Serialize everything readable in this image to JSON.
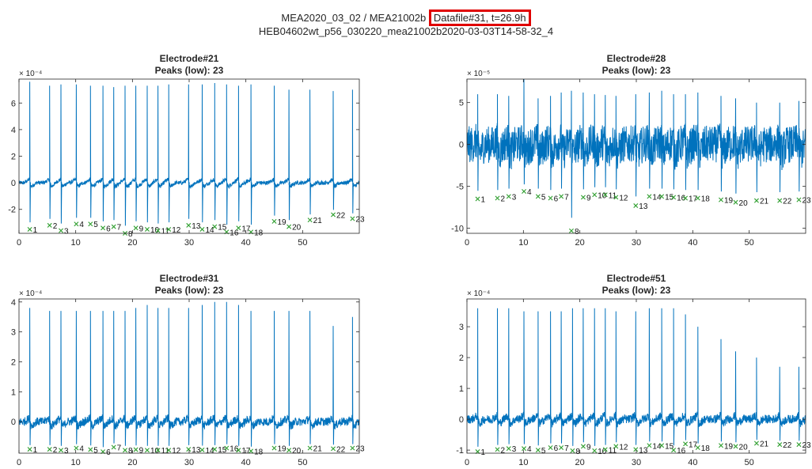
{
  "header": {
    "line1_prefix": "MEA2020_03_02 / MEA21002b",
    "line1_highlight": "Datafile#31, t=26.9h",
    "line2": "HEB04602wt_p56_030220_mea21002b2020-03-03T14-58-32_4",
    "highlight_color": "#e00000"
  },
  "chart_data": [
    {
      "type": "line",
      "title": "Electrode#21",
      "subtitle": "Peaks (low):  23",
      "y_multiplier": "× 10⁻⁴",
      "xlim": [
        0,
        60
      ],
      "ylim": [
        -3.8,
        7.8
      ],
      "xticks": [
        0,
        10,
        20,
        30,
        40,
        50
      ],
      "yticks": [
        -2,
        0,
        2,
        4,
        6
      ],
      "line_color": "#0072bd",
      "marker_color": "#2e9e2e",
      "baseline": 0,
      "noise": 0.15,
      "dip": -0.7,
      "peaks": [
        {
          "n": 1,
          "x": 1.9,
          "spike": 7.6,
          "low": -3.5
        },
        {
          "n": 2,
          "x": 5.4,
          "spike": 7.3,
          "low": -3.2
        },
        {
          "n": 3,
          "x": 7.4,
          "spike": 7.4,
          "low": -3.6
        },
        {
          "n": 4,
          "x": 10.1,
          "spike": 7.4,
          "low": -3.1
        },
        {
          "n": 5,
          "x": 12.6,
          "spike": 7.3,
          "low": -3.1
        },
        {
          "n": 6,
          "x": 14.8,
          "spike": 7.3,
          "low": -3.4
        },
        {
          "n": 7,
          "x": 16.7,
          "spike": 7.2,
          "low": -3.3
        },
        {
          "n": 8,
          "x": 18.7,
          "spike": 7.3,
          "low": -3.8
        },
        {
          "n": 9,
          "x": 20.6,
          "spike": 7.3,
          "low": -3.4
        },
        {
          "n": 10,
          "x": 22.6,
          "spike": 7.3,
          "low": -3.5
        },
        {
          "n": 11,
          "x": 24.5,
          "spike": 7.3,
          "low": -3.6
        },
        {
          "n": 12,
          "x": 26.4,
          "spike": 7.4,
          "low": -3.5
        },
        {
          "n": 13,
          "x": 29.9,
          "spike": 7.4,
          "low": -3.2
        },
        {
          "n": 14,
          "x": 32.3,
          "spike": 7.4,
          "low": -3.5
        },
        {
          "n": 15,
          "x": 34.5,
          "spike": 7.5,
          "low": -3.3
        },
        {
          "n": 16,
          "x": 36.6,
          "spike": 7.4,
          "low": -3.7
        },
        {
          "n": 17,
          "x": 38.7,
          "spike": 7.3,
          "low": -3.4
        },
        {
          "n": 18,
          "x": 40.9,
          "spike": 7.4,
          "low": -3.7
        },
        {
          "n": 19,
          "x": 45.0,
          "spike": 7.3,
          "low": -2.9
        },
        {
          "n": 20,
          "x": 47.6,
          "spike": 7.0,
          "low": -3.3
        },
        {
          "n": 21,
          "x": 51.3,
          "spike": 7.0,
          "low": -2.8
        },
        {
          "n": 22,
          "x": 55.4,
          "spike": 6.9,
          "low": -2.4
        },
        {
          "n": 23,
          "x": 58.8,
          "spike": 7.0,
          "low": -2.7
        }
      ]
    },
    {
      "type": "line",
      "title": "Electrode#28",
      "subtitle": "Peaks (low):  23",
      "y_multiplier": "× 10⁻⁵",
      "xlim": [
        0,
        60
      ],
      "ylim": [
        -10.6,
        7.8
      ],
      "xticks": [
        0,
        10,
        20,
        30,
        40,
        50
      ],
      "yticks": [
        -10,
        -5,
        0,
        5
      ],
      "line_color": "#0072bd",
      "marker_color": "#2e9e2e",
      "baseline": 0,
      "noise": 2.2,
      "dip": -2.5,
      "peaks": [
        {
          "n": 1,
          "x": 1.9,
          "spike": 6.0,
          "low": -6.5
        },
        {
          "n": 2,
          "x": 5.4,
          "spike": 6.0,
          "low": -6.4
        },
        {
          "n": 3,
          "x": 7.4,
          "spike": 5.8,
          "low": -6.2
        },
        {
          "n": 4,
          "x": 10.1,
          "spike": 7.8,
          "low": -5.6
        },
        {
          "n": 5,
          "x": 12.6,
          "spike": 5.5,
          "low": -6.2
        },
        {
          "n": 6,
          "x": 14.8,
          "spike": 5.8,
          "low": -6.4
        },
        {
          "n": 7,
          "x": 16.7,
          "spike": 6.2,
          "low": -6.2
        },
        {
          "n": 8,
          "x": 18.5,
          "spike": 6.4,
          "low": -10.3
        },
        {
          "n": 9,
          "x": 20.6,
          "spike": 6.2,
          "low": -6.3
        },
        {
          "n": 10,
          "x": 22.6,
          "spike": 6.0,
          "low": -6.0
        },
        {
          "n": 11,
          "x": 24.5,
          "spike": 5.9,
          "low": -6.0
        },
        {
          "n": 12,
          "x": 26.4,
          "spike": 5.8,
          "low": -6.3
        },
        {
          "n": 13,
          "x": 29.9,
          "spike": 6.0,
          "low": -7.3
        },
        {
          "n": 14,
          "x": 32.3,
          "spike": 6.2,
          "low": -6.2
        },
        {
          "n": 15,
          "x": 34.5,
          "spike": 6.4,
          "low": -6.2
        },
        {
          "n": 16,
          "x": 36.6,
          "spike": 6.0,
          "low": -6.3
        },
        {
          "n": 17,
          "x": 38.7,
          "spike": 6.0,
          "low": -6.4
        },
        {
          "n": 18,
          "x": 40.9,
          "spike": 6.2,
          "low": -6.4
        },
        {
          "n": 19,
          "x": 45.0,
          "spike": 5.8,
          "low": -6.6
        },
        {
          "n": 20,
          "x": 47.6,
          "spike": 5.5,
          "low": -6.9
        },
        {
          "n": 21,
          "x": 51.3,
          "spike": 5.0,
          "low": -6.7
        },
        {
          "n": 22,
          "x": 55.4,
          "spike": 5.0,
          "low": -6.7
        },
        {
          "n": 23,
          "x": 58.8,
          "spike": 5.2,
          "low": -6.6
        }
      ]
    },
    {
      "type": "line",
      "title": "Electrode#31",
      "subtitle": "Peaks (low):  23",
      "y_multiplier": "× 10⁻⁴",
      "xlim": [
        0,
        60
      ],
      "ylim": [
        -1.05,
        4.1
      ],
      "xticks": [
        0,
        10,
        20,
        30,
        40,
        50
      ],
      "yticks": [
        0,
        1,
        2,
        3,
        4
      ],
      "line_color": "#0072bd",
      "marker_color": "#2e9e2e",
      "baseline": 0,
      "noise": 0.14,
      "dip": -0.35,
      "peaks": [
        {
          "n": 1,
          "x": 1.9,
          "spike": 3.8,
          "low": -0.92
        },
        {
          "n": 2,
          "x": 5.4,
          "spike": 3.7,
          "low": -0.92
        },
        {
          "n": 3,
          "x": 7.4,
          "spike": 3.7,
          "low": -0.95
        },
        {
          "n": 4,
          "x": 10.1,
          "spike": 3.7,
          "low": -0.88
        },
        {
          "n": 5,
          "x": 12.6,
          "spike": 3.7,
          "low": -0.93
        },
        {
          "n": 6,
          "x": 14.8,
          "spike": 3.7,
          "low": -1.0
        },
        {
          "n": 7,
          "x": 16.7,
          "spike": 3.7,
          "low": -0.85
        },
        {
          "n": 8,
          "x": 18.7,
          "spike": 3.7,
          "low": -0.95
        },
        {
          "n": 9,
          "x": 20.6,
          "spike": 3.8,
          "low": -0.93
        },
        {
          "n": 10,
          "x": 22.6,
          "spike": 3.9,
          "low": -0.95
        },
        {
          "n": 11,
          "x": 24.5,
          "spike": 3.8,
          "low": -0.95
        },
        {
          "n": 12,
          "x": 26.4,
          "spike": 3.8,
          "low": -0.95
        },
        {
          "n": 13,
          "x": 29.9,
          "spike": 3.8,
          "low": -0.92
        },
        {
          "n": 14,
          "x": 32.3,
          "spike": 3.9,
          "low": -0.94
        },
        {
          "n": 15,
          "x": 34.5,
          "spike": 4.0,
          "low": -0.92
        },
        {
          "n": 16,
          "x": 36.6,
          "spike": 4.0,
          "low": -0.88
        },
        {
          "n": 17,
          "x": 38.7,
          "spike": 3.9,
          "low": -0.95
        },
        {
          "n": 18,
          "x": 40.9,
          "spike": 3.7,
          "low": -0.98
        },
        {
          "n": 19,
          "x": 45.0,
          "spike": 3.7,
          "low": -0.88
        },
        {
          "n": 20,
          "x": 47.6,
          "spike": 3.7,
          "low": -0.95
        },
        {
          "n": 21,
          "x": 51.3,
          "spike": 3.7,
          "low": -0.88
        },
        {
          "n": 22,
          "x": 55.4,
          "spike": 3.2,
          "low": -0.9
        },
        {
          "n": 23,
          "x": 58.8,
          "spike": 3.5,
          "low": -0.88
        }
      ]
    },
    {
      "type": "line",
      "title": "Electrode#51",
      "subtitle": "Peaks (low):  23",
      "y_multiplier": "× 10⁻⁴",
      "xlim": [
        0,
        60
      ],
      "ylim": [
        -1.1,
        3.9
      ],
      "xticks": [
        0,
        10,
        20,
        30,
        40,
        50
      ],
      "yticks": [
        -1,
        0,
        1,
        2,
        3
      ],
      "line_color": "#0072bd",
      "marker_color": "#2e9e2e",
      "baseline": 0,
      "noise": 0.14,
      "dip": -0.35,
      "peaks": [
        {
          "n": 1,
          "x": 1.9,
          "spike": 3.6,
          "low": -1.05
        },
        {
          "n": 2,
          "x": 5.4,
          "spike": 3.6,
          "low": -0.98
        },
        {
          "n": 3,
          "x": 7.4,
          "spike": 3.6,
          "low": -0.95
        },
        {
          "n": 4,
          "x": 10.1,
          "spike": 3.5,
          "low": -0.95
        },
        {
          "n": 5,
          "x": 12.6,
          "spike": 3.5,
          "low": -1.0
        },
        {
          "n": 6,
          "x": 14.8,
          "spike": 3.5,
          "low": -0.92
        },
        {
          "n": 7,
          "x": 16.7,
          "spike": 3.5,
          "low": -0.92
        },
        {
          "n": 8,
          "x": 18.7,
          "spike": 3.6,
          "low": -1.02
        },
        {
          "n": 9,
          "x": 20.6,
          "spike": 3.6,
          "low": -0.88
        },
        {
          "n": 10,
          "x": 22.6,
          "spike": 3.6,
          "low": -1.02
        },
        {
          "n": 11,
          "x": 24.5,
          "spike": 3.6,
          "low": -0.98
        },
        {
          "n": 12,
          "x": 26.4,
          "spike": 3.5,
          "low": -0.88
        },
        {
          "n": 13,
          "x": 29.9,
          "spike": 3.5,
          "low": -0.98
        },
        {
          "n": 14,
          "x": 32.3,
          "spike": 3.6,
          "low": -0.85
        },
        {
          "n": 15,
          "x": 34.5,
          "spike": 3.6,
          "low": -0.85
        },
        {
          "n": 16,
          "x": 36.6,
          "spike": 3.6,
          "low": -1.0
        },
        {
          "n": 17,
          "x": 38.7,
          "spike": 3.4,
          "low": -0.8
        },
        {
          "n": 18,
          "x": 40.9,
          "spike": 3.0,
          "low": -0.92
        },
        {
          "n": 19,
          "x": 45.0,
          "spike": 2.6,
          "low": -0.85
        },
        {
          "n": 20,
          "x": 47.6,
          "spike": 2.2,
          "low": -0.88
        },
        {
          "n": 21,
          "x": 51.3,
          "spike": 2.0,
          "low": -0.78
        },
        {
          "n": 22,
          "x": 55.4,
          "spike": 1.7,
          "low": -0.82
        },
        {
          "n": 23,
          "x": 58.8,
          "spike": 1.7,
          "low": -0.82
        }
      ]
    }
  ]
}
